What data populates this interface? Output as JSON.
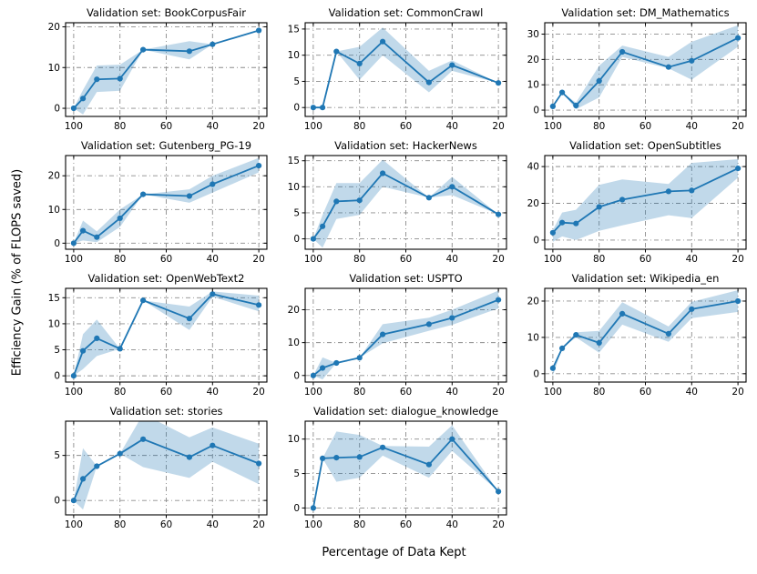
{
  "figure": {
    "xlabel": "Percentage of Data Kept",
    "ylabel": "Efficiency Gain (% of FLOPS saved)"
  },
  "chart_data": {
    "type": "line",
    "layout": "grid-3-cols-11-subplots",
    "x": [
      100,
      96,
      90,
      80,
      70,
      50,
      40,
      20
    ],
    "x_ticks": [
      100,
      80,
      60,
      40,
      20
    ],
    "xlim": [
      103.5,
      16.5
    ],
    "x_reversed": true,
    "grid": "dash-dot gray at every tick",
    "legend": "none",
    "colors": {
      "line": "#1f77b4",
      "band": "rgba(31,119,180,0.28)",
      "gridline": "#8c8c8c",
      "spine": "#000000",
      "text": "#000000"
    },
    "subplots": [
      {
        "title": "Validation set: BookCorpusFair",
        "y_ticks": [
          0,
          10,
          20
        ],
        "ylim": [
          -2.0,
          21.0
        ],
        "values": [
          0,
          2.4,
          7.1,
          7.3,
          14.4,
          14.0,
          15.7,
          19.1
        ],
        "band_lower": [
          0,
          -1.5,
          4.0,
          4.3,
          14.4,
          12.0,
          15.7,
          19.1
        ],
        "band_upper": [
          0,
          4.5,
          10.5,
          10.7,
          14.4,
          16.5,
          15.7,
          19.1
        ]
      },
      {
        "title": "Validation set: CommonCrawl",
        "y_ticks": [
          0,
          5,
          10,
          15
        ],
        "ylim": [
          -1.7,
          16.2
        ],
        "values": [
          0,
          0,
          10.7,
          8.4,
          12.6,
          4.8,
          8.1,
          4.7
        ],
        "band_lower": [
          0,
          0,
          10.7,
          5.3,
          10.0,
          2.9,
          7.0,
          4.7
        ],
        "band_upper": [
          0,
          0,
          10.7,
          11.6,
          15.3,
          7.0,
          9.0,
          4.7
        ]
      },
      {
        "title": "Validation set: DM_Mathematics",
        "y_ticks": [
          0,
          10,
          20,
          30
        ],
        "ylim": [
          -2.5,
          34.5
        ],
        "values": [
          1.5,
          7.0,
          1.8,
          11.5,
          23.0,
          17.0,
          19.5,
          28.5
        ],
        "band_lower": [
          1.5,
          7.0,
          0.3,
          5.0,
          21.0,
          16.5,
          12.0,
          25.0
        ],
        "band_upper": [
          1.5,
          7.0,
          3.0,
          17.5,
          25.5,
          21.0,
          27.0,
          33.5
        ]
      },
      {
        "title": "Validation set: Gutenberg_PG-19",
        "y_ticks": [
          0,
          10,
          20
        ],
        "ylim": [
          -1.8,
          26.0
        ],
        "values": [
          0,
          3.7,
          1.8,
          7.4,
          14.5,
          14.0,
          17.5,
          23.0
        ],
        "band_lower": [
          0,
          0.8,
          0.3,
          4.8,
          14.5,
          12.0,
          15.0,
          21.0
        ],
        "band_upper": [
          0,
          6.7,
          3.5,
          10.0,
          14.5,
          16.0,
          20.0,
          25.3
        ]
      },
      {
        "title": "Validation set: HackerNews",
        "y_ticks": [
          0,
          5,
          10,
          15
        ],
        "ylim": [
          -2.0,
          16.0
        ],
        "values": [
          0,
          2.4,
          7.2,
          7.4,
          12.6,
          7.9,
          10.0,
          4.7
        ],
        "band_lower": [
          0,
          -1.7,
          3.8,
          4.6,
          10.0,
          7.9,
          8.4,
          4.7
        ],
        "band_upper": [
          0,
          4.6,
          10.7,
          10.7,
          15.2,
          7.9,
          11.9,
          4.7
        ]
      },
      {
        "title": "Validation set: OpenSubtitles",
        "y_ticks": [
          0,
          20,
          40
        ],
        "ylim": [
          -5.0,
          46.0
        ],
        "values": [
          4.0,
          9.5,
          9.0,
          18.0,
          22.0,
          26.5,
          27.0,
          39.0
        ],
        "band_lower": [
          -1.0,
          2.0,
          0.0,
          5.0,
          8.0,
          13.5,
          12.0,
          34.0
        ],
        "band_upper": [
          5.5,
          15.0,
          16.5,
          30.0,
          33.0,
          30.5,
          42.0,
          44.0
        ]
      },
      {
        "title": "Validation set: OpenWebText2",
        "y_ticks": [
          0,
          5,
          10,
          15
        ],
        "ylim": [
          -1.2,
          16.8
        ],
        "values": [
          0,
          4.8,
          7.2,
          5.2,
          14.5,
          11.0,
          15.7,
          13.6
        ],
        "band_lower": [
          0,
          1.3,
          3.8,
          5.2,
          14.5,
          8.8,
          15.2,
          12.4
        ],
        "band_upper": [
          0,
          8.0,
          10.8,
          5.2,
          14.5,
          13.3,
          16.2,
          15.4
        ]
      },
      {
        "title": "Validation set: USPTO",
        "y_ticks": [
          0,
          10,
          20
        ],
        "ylim": [
          -2.0,
          26.5
        ],
        "values": [
          0,
          2.3,
          3.8,
          5.4,
          12.5,
          15.6,
          17.5,
          23.0
        ],
        "band_lower": [
          0,
          -1.2,
          3.8,
          5.4,
          9.8,
          13.6,
          15.4,
          20.4
        ],
        "band_upper": [
          0,
          5.5,
          3.8,
          5.4,
          15.6,
          17.6,
          20.0,
          25.8
        ]
      },
      {
        "title": "Validation set: Wikipedia_en",
        "y_ticks": [
          0,
          10,
          20
        ],
        "ylim": [
          -2.3,
          23.5
        ],
        "values": [
          1.5,
          7.0,
          10.7,
          8.5,
          16.5,
          11.0,
          17.8,
          20.0
        ],
        "band_lower": [
          -0.5,
          7.0,
          10.0,
          5.8,
          13.5,
          8.8,
          15.3,
          17.0
        ],
        "band_upper": [
          1.5,
          7.0,
          11.4,
          11.8,
          19.7,
          13.0,
          19.8,
          23.0
        ]
      },
      {
        "title": "Validation set: stories",
        "y_ticks": [
          0,
          5
        ],
        "ylim": [
          -1.6,
          8.8
        ],
        "values": [
          0,
          2.4,
          3.8,
          5.2,
          6.8,
          4.8,
          6.1,
          4.1
        ],
        "band_lower": [
          0,
          -1.0,
          3.8,
          5.2,
          3.7,
          2.5,
          4.3,
          1.8
        ],
        "band_upper": [
          0,
          5.8,
          3.8,
          5.2,
          9.6,
          7.0,
          8.1,
          6.3
        ]
      },
      {
        "title": "Validation set: dialogue_knowledge",
        "y_ticks": [
          0,
          5,
          10
        ],
        "ylim": [
          -1.0,
          12.6
        ],
        "values": [
          0,
          7.2,
          7.3,
          7.4,
          8.8,
          6.3,
          10.0,
          2.4
        ],
        "band_lower": [
          0,
          7.2,
          3.8,
          4.4,
          7.6,
          4.4,
          8.3,
          2.4
        ],
        "band_upper": [
          0,
          7.2,
          11.1,
          10.6,
          9.0,
          8.9,
          12.0,
          2.4
        ]
      }
    ]
  }
}
